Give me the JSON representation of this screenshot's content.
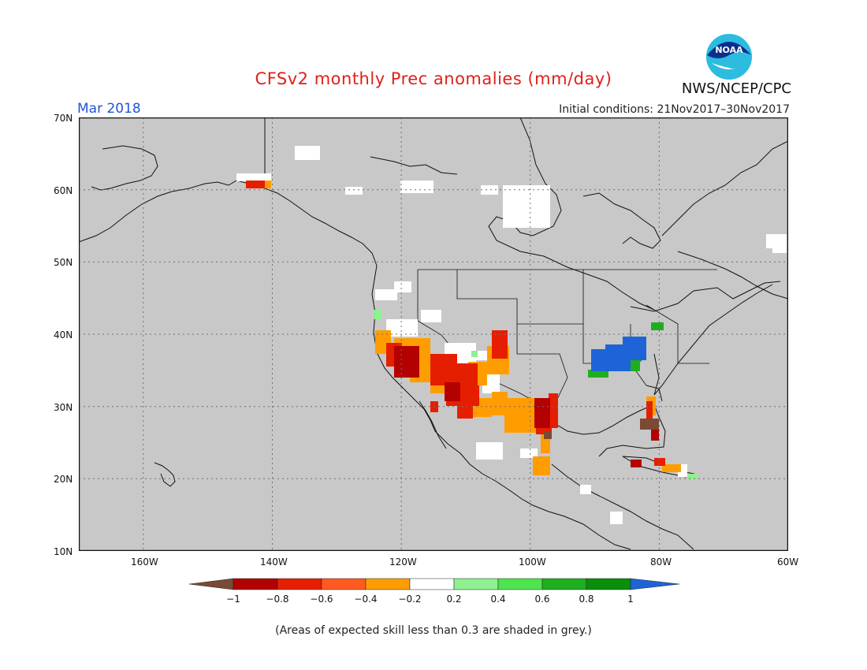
{
  "header": {
    "title": "CFSv2 monthly Prec anomalies (mm/day)",
    "agency": "NWS/NCEP/CPC",
    "logo_text": "NOAA",
    "month": "Mar 2018",
    "initial_conditions": "Initial conditions: 21Nov2017–30Nov2017"
  },
  "axes": {
    "lat_labels": [
      "70N",
      "60N",
      "50N",
      "40N",
      "30N",
      "20N",
      "10N"
    ],
    "lon_labels": [
      "160W",
      "140W",
      "120W",
      "100W",
      "80W",
      "60W"
    ]
  },
  "legend": {
    "labels": [
      "−1",
      "−0.8",
      "−0.6",
      "−0.4",
      "−0.2",
      "0.2",
      "0.4",
      "0.6",
      "0.8",
      "1"
    ],
    "colors": [
      "#7a4a35",
      "#b30000",
      "#e61e00",
      "#ff5a1f",
      "#ff9d00",
      "#ffffff",
      "#8ef08e",
      "#4ee44e",
      "#1fae1f",
      "#0a8f0a",
      "#1e64d8"
    ]
  },
  "colors": {
    "skill_mask_grey": "#c8c8c8",
    "title_red": "#e0201a",
    "month_blue": "#2154d6"
  },
  "footnote": "(Areas of expected skill less than 0.3 are shaded in grey.)"
}
